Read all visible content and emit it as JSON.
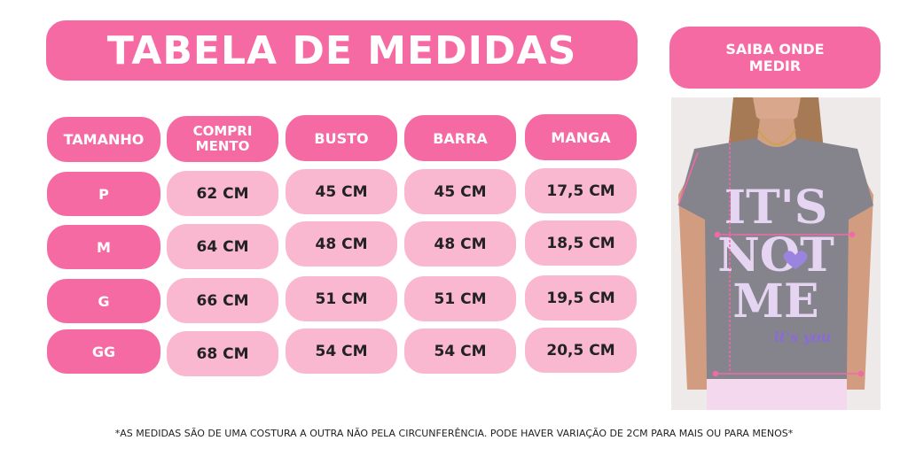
{
  "title": "TABELA DE MEDIDAS",
  "howto": {
    "line1": "SAIBA ONDE",
    "line2": "MEDIR"
  },
  "headers": {
    "size": "TAMANHO",
    "length_line1": "COMPRI",
    "length_line2": "MENTO",
    "bust": "BUSTO",
    "hem": "BARRA",
    "sleeve": "MANGA"
  },
  "rows": [
    {
      "size": "P",
      "length": "62 CM",
      "bust": "45 CM",
      "hem": "45 CM",
      "sleeve": "17,5 CM"
    },
    {
      "size": "M",
      "length": "64 CM",
      "bust": "48 CM",
      "hem": "48 CM",
      "sleeve": "18,5 CM"
    },
    {
      "size": "G",
      "length": "66 CM",
      "bust": "51 CM",
      "hem": "51 CM",
      "sleeve": "19,5 CM"
    },
    {
      "size": "GG",
      "length": "68 CM",
      "bust": "54 CM",
      "hem": "54 CM",
      "sleeve": "20,5 CM"
    }
  ],
  "shirt_print": {
    "line1": "IT'S",
    "line2": "NOT",
    "line3": "ME",
    "line4": "it's you"
  },
  "footnote": "*AS MEDIDAS SÃO DE UMA COSTURA A OUTRA NÃO PELA CIRCUNFERÊNCIA. PODE HAVER VARIAÇÃO DE 2CM PARA MAIS OU PARA MENOS*",
  "colors": {
    "header_pink": "#f56aa3",
    "cell_pink": "#f9b7d0",
    "shirt_gray": "#85848d",
    "print_lilac": "#e6d5f2",
    "arrow_pink": "#f06aa8"
  }
}
